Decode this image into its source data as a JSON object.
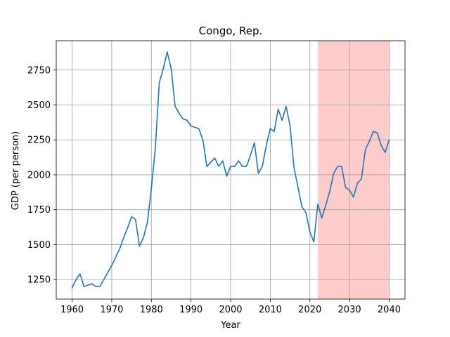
{
  "chart_data": {
    "type": "line",
    "title": "Congo, Rep.",
    "xlabel": "Year",
    "ylabel": "GDP (per person)",
    "xlim": [
      1956,
      2044
    ],
    "ylim": [
      1110,
      2960
    ],
    "xticks": [
      1960,
      1970,
      1980,
      1990,
      2000,
      2010,
      2020,
      2030,
      2040
    ],
    "yticks": [
      1250,
      1500,
      1750,
      2000,
      2250,
      2500,
      2750
    ],
    "grid": true,
    "highlight": {
      "from": 2022,
      "to": 2040,
      "color": "#ffcccc"
    },
    "series": [
      {
        "color": "#1f77b4",
        "x": [
          1960,
          1961,
          1962,
          1963,
          1964,
          1965,
          1966,
          1967,
          1968,
          1969,
          1970,
          1971,
          1972,
          1973,
          1974,
          1975,
          1976,
          1977,
          1978,
          1979,
          1980,
          1981,
          1982,
          1983,
          1984,
          1985,
          1986,
          1987,
          1988,
          1989,
          1990,
          1991,
          1992,
          1993,
          1994,
          1995,
          1996,
          1997,
          1998,
          1999,
          2000,
          2001,
          2002,
          2003,
          2004,
          2005,
          2006,
          2007,
          2008,
          2009,
          2010,
          2011,
          2012,
          2013,
          2014,
          2015,
          2016,
          2017,
          2018,
          2019,
          2020,
          2021,
          2022,
          2023,
          2024,
          2025,
          2026,
          2027,
          2028,
          2029,
          2030,
          2031,
          2032,
          2033,
          2034,
          2035,
          2036,
          2037,
          2038,
          2039,
          2040
        ],
        "y": [
          1190,
          1250,
          1290,
          1200,
          1210,
          1220,
          1200,
          1200,
          1250,
          1300,
          1350,
          1410,
          1470,
          1550,
          1620,
          1700,
          1680,
          1490,
          1550,
          1660,
          1900,
          2190,
          2660,
          2760,
          2880,
          2760,
          2490,
          2440,
          2400,
          2390,
          2350,
          2340,
          2330,
          2250,
          2060,
          2090,
          2120,
          2060,
          2100,
          1990,
          2060,
          2060,
          2100,
          2060,
          2060,
          2140,
          2230,
          2010,
          2060,
          2210,
          2330,
          2310,
          2470,
          2390,
          2490,
          2350,
          2050,
          1910,
          1770,
          1730,
          1590,
          1520,
          1790,
          1690,
          1780,
          1880,
          2010,
          2060,
          2060,
          1910,
          1890,
          1840,
          1940,
          1970,
          2180,
          2240,
          2310,
          2300,
          2210,
          2160,
          2250
        ]
      }
    ]
  }
}
